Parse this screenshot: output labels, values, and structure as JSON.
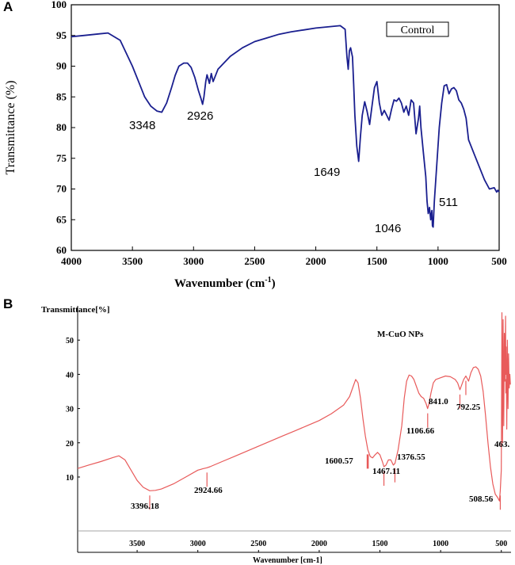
{
  "chart_data": [
    {
      "panel": "A",
      "type": "line",
      "legend": "Control",
      "xlabel": "Wavenumber (cm",
      "xlabel_sup": "-1",
      "xlabel_end": ")",
      "ylabel": "Transmittance (%)",
      "xlim": [
        4000,
        500
      ],
      "ylim": [
        60,
        100
      ],
      "x_ticks": [
        4000,
        3500,
        3000,
        2500,
        2000,
        1500,
        1000,
        500
      ],
      "y_ticks": [
        60,
        65,
        70,
        75,
        80,
        85,
        90,
        95,
        100
      ],
      "line_color": "#1a1f8f",
      "series": [
        {
          "x": [
            4000,
            3900,
            3800,
            3700,
            3600,
            3500,
            3450,
            3400,
            3350,
            3300,
            3260,
            3220,
            3180,
            3150,
            3120,
            3080,
            3050,
            3020,
            2990,
            2960,
            2940,
            2926,
            2915,
            2900,
            2890,
            2870,
            2855,
            2840,
            2800,
            2700,
            2600,
            2500,
            2400,
            2300,
            2200,
            2100,
            2000,
            1900,
            1800,
            1760,
            1745,
            1735,
            1725,
            1715,
            1700,
            1690,
            1680,
            1665,
            1649,
            1635,
            1620,
            1600,
            1580,
            1560,
            1540,
            1520,
            1500,
            1480,
            1460,
            1440,
            1420,
            1400,
            1380,
            1360,
            1340,
            1320,
            1300,
            1280,
            1260,
            1240,
            1220,
            1200,
            1180,
            1160,
            1150,
            1140,
            1120,
            1100,
            1090,
            1080,
            1070,
            1060,
            1050,
            1046,
            1040,
            1030,
            1010,
            990,
            970,
            950,
            930,
            910,
            890,
            870,
            850,
            830,
            810,
            790,
            770,
            750,
            730,
            700,
            660,
            620,
            580,
            540,
            520,
            511,
            500
          ],
          "y": [
            94.8,
            95.0,
            95.2,
            95.4,
            94.2,
            90.0,
            87.5,
            85.0,
            83.5,
            82.7,
            82.5,
            84.0,
            86.5,
            88.5,
            90.0,
            90.5,
            90.5,
            89.8,
            88.2,
            86.0,
            84.8,
            83.8,
            85.0,
            87.5,
            88.6,
            87.2,
            88.8,
            87.5,
            89.5,
            91.6,
            93.0,
            94.0,
            94.6,
            95.2,
            95.6,
            95.9,
            96.2,
            96.4,
            96.6,
            96.0,
            91.5,
            89.5,
            92.5,
            93.0,
            91.5,
            87.0,
            82.0,
            77.0,
            74.5,
            78.5,
            82.0,
            84.2,
            82.6,
            80.5,
            83.5,
            86.5,
            87.5,
            84.0,
            82.0,
            82.8,
            82.0,
            81.2,
            83.0,
            84.5,
            84.3,
            84.8,
            84.0,
            82.5,
            83.5,
            82.0,
            84.5,
            84.0,
            79.0,
            81.5,
            83.5,
            80.0,
            76.0,
            72.0,
            68.0,
            66.0,
            67.0,
            65.0,
            66.5,
            64.0,
            63.8,
            68.0,
            74.0,
            80.0,
            84.0,
            86.8,
            87.0,
            85.5,
            86.3,
            86.5,
            86.0,
            84.5,
            84.0,
            83.0,
            81.5,
            78.0,
            77.0,
            75.5,
            73.5,
            71.5,
            70.0,
            70.2,
            69.5,
            69.8,
            69.5
          ]
        }
      ],
      "annotations": [
        "3348",
        "2926",
        "1649",
        "1046",
        "511"
      ]
    },
    {
      "panel": "B",
      "type": "line",
      "title": "M-CuO NPs",
      "xlabel": "Wavenumber [cm-1]",
      "ylabel": "Transmittance[%]",
      "xlim": [
        3990,
        420
      ],
      "ylim": [
        -12,
        60
      ],
      "x_ticks": [
        3500,
        3000,
        2500,
        2000,
        1500,
        1000,
        500
      ],
      "y_ticks": [
        10,
        20,
        30,
        40,
        50
      ],
      "line_color": "#e85a5a",
      "series": [
        {
          "x": [
            3990,
            3900,
            3800,
            3700,
            3650,
            3600,
            3550,
            3500,
            3450,
            3396,
            3350,
            3300,
            3200,
            3100,
            3000,
            2960,
            2925,
            2900,
            2800,
            2700,
            2600,
            2500,
            2400,
            2300,
            2200,
            2100,
            2000,
            1900,
            1800,
            1750,
            1720,
            1700,
            1680,
            1660,
            1640,
            1620,
            1600,
            1580,
            1560,
            1540,
            1520,
            1500,
            1480,
            1467,
            1450,
            1430,
            1410,
            1390,
            1376,
            1350,
            1320,
            1300,
            1280,
            1260,
            1240,
            1220,
            1200,
            1180,
            1160,
            1140,
            1120,
            1107,
            1095,
            1080,
            1060,
            1040,
            1000,
            960,
            920,
            880,
            860,
            841,
            825,
            810,
            792,
            770,
            750,
            730,
            710,
            690,
            670,
            650,
            630,
            610,
            590,
            570,
            550,
            530,
            515,
            509,
            500,
            495,
            490,
            485,
            480,
            475,
            470,
            465,
            463,
            460,
            455,
            450,
            445,
            440,
            435,
            430,
            425
          ],
          "y": [
            12.5,
            13.5,
            14.5,
            15.7,
            16.2,
            15.0,
            12.0,
            9.0,
            7.0,
            6.0,
            6.1,
            6.5,
            8.0,
            10.0,
            12.0,
            12.4,
            12.7,
            13.0,
            14.5,
            16.0,
            17.5,
            19.0,
            20.5,
            22.0,
            23.5,
            25.0,
            26.5,
            28.5,
            31.0,
            33.5,
            36.5,
            38.5,
            37.5,
            33.0,
            27.0,
            22.0,
            18.0,
            16.0,
            15.6,
            16.5,
            17.2,
            16.5,
            14.5,
            13.0,
            13.5,
            15.0,
            15.0,
            13.5,
            14.0,
            18.0,
            25.0,
            33.0,
            38.0,
            39.8,
            39.5,
            38.5,
            36.5,
            34.5,
            33.5,
            33.0,
            31.5,
            30.0,
            31.5,
            34.5,
            37.5,
            38.5,
            39.0,
            39.5,
            39.3,
            38.5,
            37.5,
            35.5,
            37.0,
            38.5,
            39.5,
            38.0,
            40.5,
            42.0,
            42.2,
            41.5,
            39.5,
            35.0,
            28.0,
            20.0,
            13.0,
            8.0,
            5.0,
            4.0,
            3.0,
            6.0,
            12.0,
            58.0,
            20.0,
            56.0,
            25.0,
            52.0,
            38.0,
            57.0,
            40.0,
            48.0,
            24.0,
            50.0,
            30.0,
            46.0,
            36.0,
            40.0,
            37.0
          ]
        }
      ],
      "annotations": [
        "3396.18",
        "2924.66",
        "1600.57",
        "1467.11",
        "1376.55",
        "1106.66",
        "841.0",
        "792.25",
        "508.56",
        "463."
      ]
    }
  ],
  "panels": {
    "a_letter": "A",
    "b_letter": "B"
  }
}
